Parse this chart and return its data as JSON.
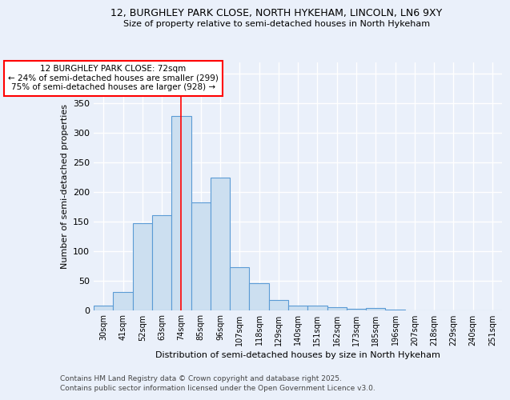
{
  "title1": "12, BURGHLEY PARK CLOSE, NORTH HYKEHAM, LINCOLN, LN6 9XY",
  "title2": "Size of property relative to semi-detached houses in North Hykeham",
  "xlabel": "Distribution of semi-detached houses by size in North Hykeham",
  "ylabel": "Number of semi-detached properties",
  "annotation_title": "12 BURGHLEY PARK CLOSE: 72sqm",
  "annotation_line1": "← 24% of semi-detached houses are smaller (299)",
  "annotation_line2": "75% of semi-detached houses are larger (928) →",
  "footnote1": "Contains HM Land Registry data © Crown copyright and database right 2025.",
  "footnote2": "Contains public sector information licensed under the Open Government Licence v3.0.",
  "categories": [
    "30sqm",
    "41sqm",
    "52sqm",
    "63sqm",
    "74sqm",
    "85sqm",
    "96sqm",
    "107sqm",
    "118sqm",
    "129sqm",
    "140sqm",
    "151sqm",
    "162sqm",
    "173sqm",
    "185sqm",
    "196sqm",
    "207sqm",
    "218sqm",
    "229sqm",
    "240sqm",
    "251sqm"
  ],
  "values": [
    8,
    30,
    147,
    160,
    328,
    182,
    224,
    73,
    45,
    17,
    8,
    7,
    5,
    2,
    4,
    1,
    0,
    0,
    0,
    0,
    0
  ],
  "bar_color": "#ccdff0",
  "bar_edge_color": "#5b9bd5",
  "vline_x": 4,
  "vline_color": "red",
  "annotation_box_color": "red",
  "background_color": "#eaf0fa",
  "grid_color": "#ffffff",
  "ylim": [
    0,
    420
  ],
  "yticks": [
    0,
    50,
    100,
    150,
    200,
    250,
    300,
    350,
    400
  ]
}
